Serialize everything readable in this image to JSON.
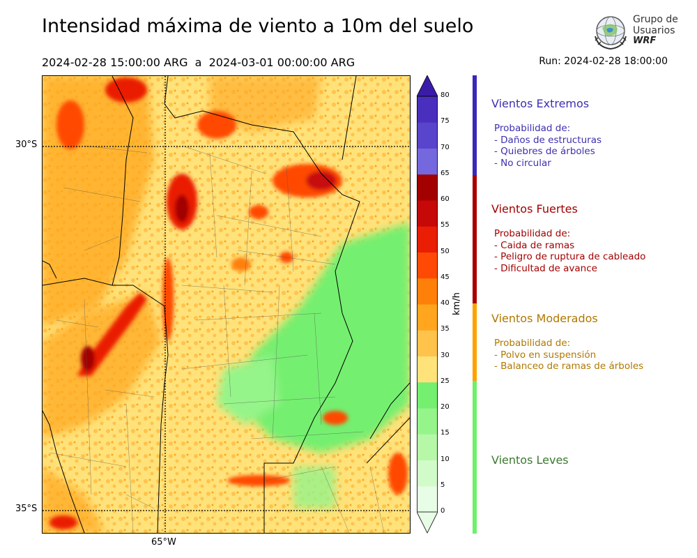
{
  "header": {
    "title": "Intensidad máxima de viento a 10m del suelo",
    "period": "2024-02-28 15:00:00 ARG  a  2024-03-01 00:00:00 ARG",
    "run": "Run: 2024-02-28 18:00:00"
  },
  "logo": {
    "line1": "Grupo de",
    "line2": "Usuarios",
    "line3": "WRF"
  },
  "map": {
    "lat_labels": [
      "30°S",
      "35°S"
    ],
    "lon_labels": [
      "65°W"
    ]
  },
  "colorbar": {
    "unit": "km/h",
    "ticks": [
      "0",
      "5",
      "10",
      "15",
      "20",
      "25",
      "30",
      "35",
      "40",
      "45",
      "50",
      "55",
      "60",
      "65",
      "70",
      "75",
      "80"
    ],
    "colors": [
      "#e8fde5",
      "#d2fbca",
      "#b6f8a8",
      "#95f48a",
      "#74ef6f",
      "#ffe27a",
      "#ffc34c",
      "#ffa51e",
      "#ff8008",
      "#ff4a05",
      "#ea1d05",
      "#c70808",
      "#a30000",
      "#7567dd",
      "#5944cc",
      "#4a2fbf",
      "#3a1ca9"
    ]
  },
  "categories": [
    {
      "title": "Vientos Extremos",
      "color": "#3d2fb0",
      "bar_color": "#3a28b8",
      "lines": [
        "Probabilidad de:",
        "- Daños de estructuras",
        "- Quiebres de árboles",
        "- No circular"
      ]
    },
    {
      "title": "Vientos Fuertes",
      "color": "#a30000",
      "bar_color": "#a80000",
      "lines": [
        "Probabilidad de:",
        "- Caida de ramas",
        "- Peligro de ruptura de cableado",
        "- Dificultad de avance"
      ]
    },
    {
      "title": "Vientos Moderados",
      "color": "#b07800",
      "bar_color": "#ffa200",
      "lines": [
        "Probabilidad de:",
        "- Polvo en suspensión",
        "- Balanceo de ramas de árboles"
      ]
    },
    {
      "title": "Vientos Leves",
      "color": "#3a7a2e",
      "bar_color": "#6ef06a",
      "lines": []
    }
  ]
}
